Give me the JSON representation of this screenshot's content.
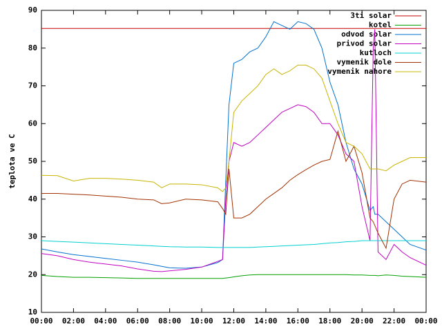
{
  "chart_data": {
    "type": "line",
    "y_label": "teplota ve C",
    "x": [
      0,
      1,
      2,
      3,
      4,
      5,
      6,
      7,
      7.5,
      8,
      9,
      10,
      11,
      11.3,
      11.5,
      11.7,
      12,
      12.5,
      13,
      13.5,
      14,
      14.5,
      15,
      15.5,
      16,
      16.5,
      17,
      17.5,
      18,
      18.5,
      19,
      19.5,
      20,
      20.5,
      20.7,
      20.8,
      21,
      21.5,
      22,
      22.5,
      23,
      24
    ],
    "xlim": [
      0,
      24
    ],
    "xticks": [
      {
        "value": 0,
        "label": "00:00"
      },
      {
        "value": 2,
        "label": "02:00"
      },
      {
        "value": 4,
        "label": "04:00"
      },
      {
        "value": 6,
        "label": "06:00"
      },
      {
        "value": 8,
        "label": "08:00"
      },
      {
        "value": 10,
        "label": "10:00"
      },
      {
        "value": 12,
        "label": "12:00"
      },
      {
        "value": 14,
        "label": "14:00"
      },
      {
        "value": 16,
        "label": "16:00"
      },
      {
        "value": 18,
        "label": "18:00"
      },
      {
        "value": 20,
        "label": "20:00"
      },
      {
        "value": 22,
        "label": "22:00"
      },
      {
        "value": 24,
        "label": "00:00"
      }
    ],
    "ylim": [
      10,
      90
    ],
    "yticks": [
      10,
      20,
      30,
      40,
      50,
      60,
      70,
      80,
      90
    ],
    "grid": false,
    "legend": "top-right",
    "series": [
      {
        "name": "3ti solar",
        "color": "#c00000",
        "values": [
          85.2,
          85.2,
          85.2,
          85.2,
          85.2,
          85.2,
          85.2,
          85.2,
          85.2,
          85.2,
          85.2,
          85.2,
          85.2,
          85.2,
          85.2,
          85.2,
          85.2,
          85.2,
          85.2,
          85.2,
          85.2,
          85.2,
          85.2,
          85.2,
          85.2,
          85.2,
          85.2,
          85.2,
          85.2,
          85.2,
          85.2,
          85.2,
          85.2,
          85.2,
          85.2,
          85.2,
          85.2,
          85.2,
          85.2,
          85.2,
          85.2,
          85.2
        ]
      },
      {
        "name": "kotel",
        "color": "#00a000",
        "values": [
          19.8,
          19.5,
          19.3,
          19.3,
          19.2,
          19.1,
          19,
          19,
          19,
          19,
          19,
          19,
          19,
          19,
          19.1,
          19.2,
          19.4,
          19.7,
          19.9,
          20,
          20,
          20,
          20,
          20,
          20,
          20,
          20,
          20,
          20,
          20,
          20,
          19.9,
          19.9,
          19.8,
          19.8,
          19.8,
          19.7,
          19.9,
          19.8,
          19.6,
          19.5,
          19.3
        ]
      },
      {
        "name": "odvod solar",
        "color": "#0070d0",
        "values": [
          26.8,
          26,
          25.3,
          24.8,
          24.3,
          23.8,
          23.3,
          22.6,
          22.2,
          21.8,
          21.7,
          22,
          23.2,
          24,
          45,
          65,
          76,
          77,
          79,
          80,
          83,
          87,
          86,
          85,
          87,
          86.5,
          85,
          80,
          71,
          65,
          55,
          48,
          44,
          37,
          38,
          36,
          36,
          34,
          32,
          30,
          28,
          26.5
        ]
      },
      {
        "name": "privod solar",
        "color": "#c000c0",
        "values": [
          25.6,
          25,
          24,
          23.3,
          22.8,
          22.3,
          21.5,
          20.9,
          20.8,
          21,
          21.4,
          22,
          23.5,
          24,
          40,
          50,
          55,
          54,
          55,
          57,
          59,
          61,
          63,
          64,
          65,
          64.5,
          63,
          60,
          60,
          57,
          52,
          50,
          38,
          29,
          80,
          85,
          26,
          24,
          28,
          26,
          24.5,
          22.5
        ]
      },
      {
        "name": "kutloch",
        "color": "#00d0d0",
        "values": [
          29,
          28.8,
          28.6,
          28.4,
          28.2,
          28,
          27.8,
          27.6,
          27.5,
          27.4,
          27.3,
          27.3,
          27.2,
          27.2,
          27.2,
          27.2,
          27.2,
          27.2,
          27.2,
          27.3,
          27.4,
          27.5,
          27.6,
          27.7,
          27.8,
          27.9,
          28,
          28.2,
          28.4,
          28.5,
          28.7,
          28.8,
          29,
          29,
          29,
          29,
          29,
          29,
          29,
          29,
          29,
          29
        ]
      },
      {
        "name": "vymenik dole",
        "color": "#a03000",
        "values": [
          41.5,
          41.5,
          41.3,
          41.1,
          40.8,
          40.5,
          40,
          39.8,
          38.8,
          39,
          40,
          39.8,
          39.3,
          37.5,
          36,
          48,
          35,
          35,
          36,
          38,
          40,
          41.5,
          43,
          45,
          46.5,
          47.8,
          49,
          50,
          50.5,
          58,
          50,
          54,
          47,
          35,
          34,
          33,
          31,
          27,
          40,
          44,
          45,
          44.5
        ]
      },
      {
        "name": "vymenik nahore",
        "color": "#c8b400",
        "values": [
          46.3,
          46.2,
          44.8,
          45.5,
          45.5,
          45.3,
          45,
          44.5,
          43,
          44,
          44,
          43.8,
          43,
          42,
          43,
          50,
          63,
          66,
          68,
          70,
          73,
          74.5,
          73,
          74,
          75.5,
          75.5,
          74.5,
          72,
          66,
          60,
          55,
          54,
          52,
          48,
          48,
          48,
          48,
          47.5,
          49,
          50,
          51,
          51
        ]
      }
    ]
  }
}
